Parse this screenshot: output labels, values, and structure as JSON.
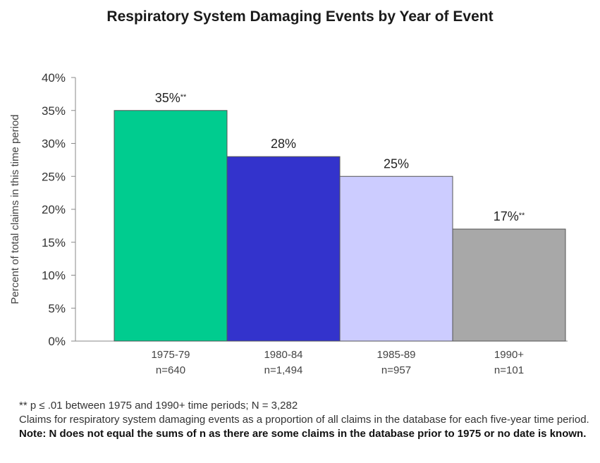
{
  "chart_data": {
    "type": "bar",
    "title": "Respiratory System Damaging Events by Year of Event",
    "ylabel": "Percent of total claims in this time period",
    "xlabel": "",
    "ylim": [
      0,
      40
    ],
    "y_ticks": [
      0,
      5,
      10,
      15,
      20,
      25,
      30,
      35,
      40
    ],
    "y_tick_labels": [
      "0%",
      "5%",
      "10%",
      "15%",
      "20%",
      "25%",
      "30%",
      "35%",
      "40%"
    ],
    "grid": false,
    "categories": [
      "1975-79",
      "1980-84",
      "1985-89",
      "1990+"
    ],
    "category_n": [
      "n=640",
      "n=1,494",
      "n=957",
      "n=101"
    ],
    "values": [
      35,
      28,
      25,
      17
    ],
    "data_labels": [
      "35%",
      "28%",
      "25%",
      "17%"
    ],
    "data_label_marks": [
      "**",
      "",
      "",
      "**"
    ],
    "colors": [
      "#00cc8f",
      "#3333cc",
      "#ccccff",
      "#a8a8a8"
    ]
  },
  "footnotes": {
    "line1": "** p ≤ .01 between 1975 and 1990+ time periods; N = 3,282",
    "line2_normal": "Claims for respiratory system damaging events as a proportion of all claims in the database for each five-year time period.",
    "line2_note": "Note: N does not equal the sums of n as there are some claims in the database prior to 1975 or no date is known."
  }
}
